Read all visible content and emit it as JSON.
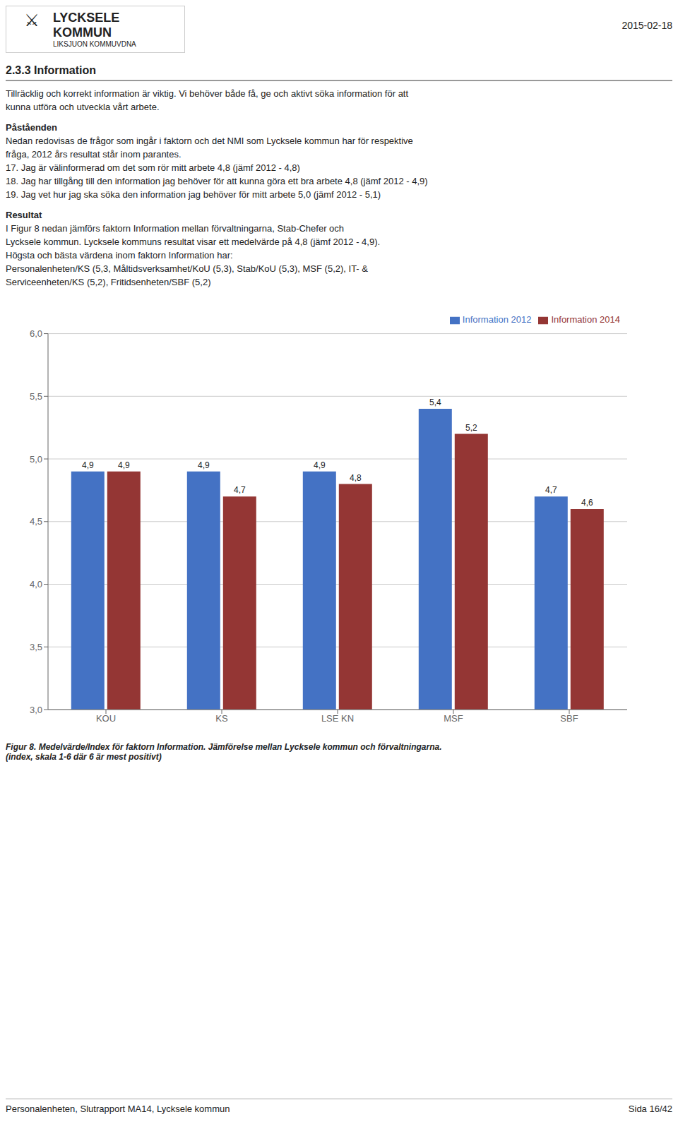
{
  "chart_data": {
    "type": "bar",
    "title": "Figur 8. Medelvärde/Index för faktorn Information. Jämförelse mellan Lycksele kommun och förvaltningarna.",
    "subtitle": "(index, skala 1-6 där 6 är mest positivt)",
    "annotations": [
      "LYCKSELE",
      "KOMMUN",
      "LIKSJUON KOMMUVDNA",
      "⚔",
      "2015-02-18",
      "2.3.3 Information",
      "Tillräcklig och korrekt information är viktig. Vi behöver både få, ge och aktivt söka information för att",
      "kunna utföra och utveckla vårt arbete.",
      "Påståenden",
      "Nedan redovisas de frågor som ingår i faktorn och det NMI som Lycksele kommun har för respektive",
      "fråga, 2012 års resultat står inom parantes.",
      "17. Jag är välinformerad om det som rör mitt arbete 4,8 (jämf 2012 - 4,8)",
      "18. Jag har tillgång till den information jag behöver för att kunna göra ett bra arbete 4,8 (jämf 2012 - 4,9)",
      "19. Jag vet hur jag ska söka den information jag behöver för mitt arbete 5,0 (jämf 2012 - 5,1)",
      "Resultat",
      "I Figur 8 nedan jämförs faktorn Information mellan förvaltningarna, Stab-Chefer och",
      "Lycksele kommun. Lycksele kommuns resultat visar ett medelvärde på 4,8 (jämf 2012 - 4,9).",
      "Högsta och bästa värdena inom faktorn Information har:",
      "Personalenheten/KS (5,3, Måltidsverksamhet/KoU (5,3), Stab/KoU (5,3), MSF (5,2), IT- &",
      "Serviceenheten/KS (5,2), Fritidsenheten/SBF (5,2)",
      "Personalenheten, Slutrapport MA14, Lycksele kommun",
      "Sida 16/42"
    ],
    "categories": [
      "KOU",
      "KS",
      "LSE KN",
      "MSF",
      "SBF"
    ],
    "series": [
      {
        "name": "Information 2012",
        "color": "#4472C4",
        "values": [
          4.9,
          4.9,
          4.9,
          5.4,
          4.7
        ],
        "value_labels": [
          "4,9",
          "4,9",
          "4,9",
          "5,4",
          "4,7"
        ]
      },
      {
        "name": "Information 2014",
        "color": "#943634",
        "values": [
          4.9,
          4.7,
          4.8,
          5.2,
          4.6
        ],
        "value_labels": [
          "4,9",
          "4,7",
          "4,8",
          "5,2",
          "4,6"
        ]
      }
    ],
    "ylim": [
      3.0,
      6.0
    ],
    "yticks": [
      {
        "value": 3.0,
        "label": "3,0"
      },
      {
        "value": 3.5,
        "label": "3,5"
      },
      {
        "value": 4.0,
        "label": "4,0"
      },
      {
        "value": 4.5,
        "label": "4,5"
      },
      {
        "value": 5.0,
        "label": "5,0"
      },
      {
        "value": 5.5,
        "label": "5,5"
      },
      {
        "value": 6.0,
        "label": "6,0"
      }
    ],
    "grid": true,
    "legend": "upper right",
    "data_labels": true
  }
}
